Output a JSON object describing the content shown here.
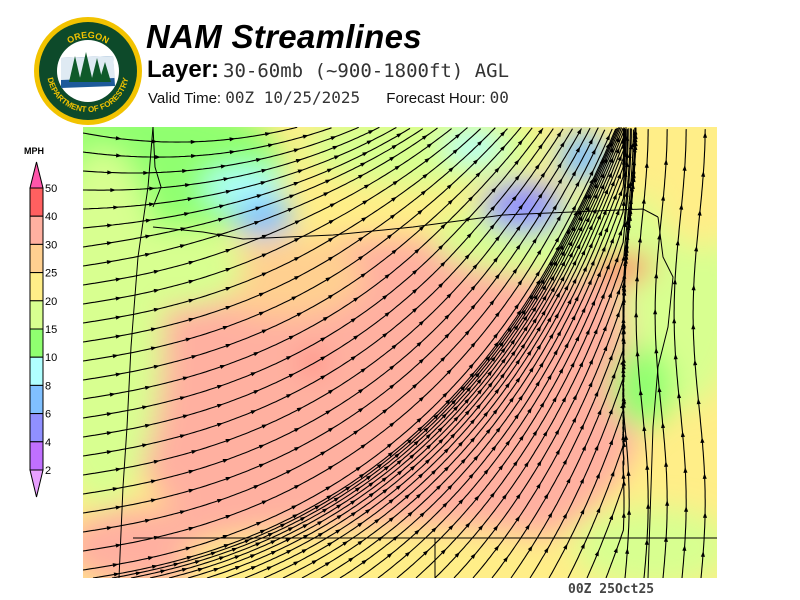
{
  "logo": {
    "text_top": "OREGON",
    "text_bottom": "DEPARTMENT OF FORESTRY"
  },
  "header": {
    "title": "NAM Streamlines",
    "layer_label": "Layer:",
    "layer_value": "30-60mb (~900-1800ft) AGL",
    "valid_label": "Valid Time:",
    "valid_value": "00Z 10/25/2025",
    "forecast_label": "Forecast Hour:",
    "forecast_value": "00"
  },
  "legend": {
    "units": "MPH",
    "labels": [
      "50",
      "40",
      "30",
      "25",
      "20",
      "15",
      "10",
      "8",
      "6",
      "4",
      "2"
    ],
    "colors": [
      "#ff6060",
      "#ffb0a0",
      "#ffd090",
      "#ffee88",
      "#d8ff90",
      "#90ff70",
      "#b0ffff",
      "#80c0ff",
      "#9090ff",
      "#c070ff"
    ],
    "above_color": "#ff55aa",
    "below_color": "#e8a0ff"
  },
  "footer": {
    "stamp": "00Z 25Oct25"
  }
}
